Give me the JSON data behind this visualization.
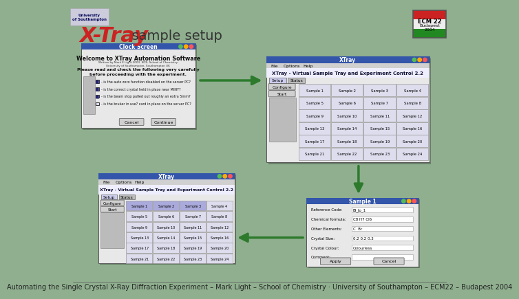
{
  "bg_color": "#8faf8f",
  "title_xtray": "X-Tray",
  "title_xtray_color": "#cc2222",
  "title_setup": "  sample setup",
  "title_setup_color": "#333333",
  "title_fontsize": 22,
  "subtitle_fontsize": 14,
  "footer_text": "Automating the Single Crystal X-Ray Diffraction Experiment – Mark Light – School of Chemistry · University of Southampton – ECM22 – Budapest 2004",
  "footer_color": "#222222",
  "footer_fontsize": 7,
  "arrow_color": "#2d7a2d",
  "window_title_bar_color": "#3355aa",
  "window_body_color": "#e8e8e8",
  "samples": [
    "Sample 1",
    "Sample 2",
    "Sample 3",
    "Sample 4",
    "Sample 5",
    "Sample 6",
    "Sample 7",
    "Sample 8",
    "Sample 9",
    "Sample 10",
    "Sample 11",
    "Sample 12",
    "Sample 13",
    "Sample 14",
    "Sample 15",
    "Sample 16",
    "Sample 17",
    "Sample 18",
    "Sample 19",
    "Sample 20",
    "Sample 21",
    "Sample 22",
    "Sample 23",
    "Sample 24"
  ],
  "fields": [
    [
      "Reference Code:",
      "Bl_Jo_1"
    ],
    [
      "Chemical formula:",
      "C8 H7 Cl6"
    ],
    [
      "Other Elements:",
      "C  Br"
    ],
    [
      "Crystal Size:",
      "0.2 0.2 0.3"
    ],
    [
      "Crystal Colour:",
      "Colourless"
    ],
    [
      "Comment:",
      ""
    ]
  ],
  "checks": [
    "- is the auto zero function disabled on the server PC?",
    "- is the correct crystal held in place near MINY?",
    "- is the beam stop pulled out roughly an extra 5mm?",
    "- is the bruker in use? card in place on the server PC?"
  ]
}
